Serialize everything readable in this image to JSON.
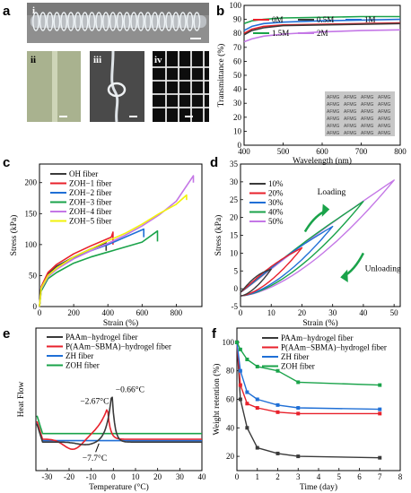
{
  "panel_labels": {
    "a": "a",
    "b": "b",
    "c": "c",
    "d": "d",
    "e": "e",
    "f": "f"
  },
  "photo_labels": {
    "i": "i",
    "ii": "ii",
    "iii": "iii",
    "iv": "iv"
  },
  "colors": {
    "black": "#3a3a3a",
    "red": "#e8212b",
    "blue": "#1f6fd6",
    "green": "#1aa34a",
    "purple": "#c477e6",
    "yellow": "#f2f20a"
  },
  "chart_data": [
    {
      "id": "b",
      "type": "line",
      "xlabel": "Wavelength (nm)",
      "ylabel": "Transmittance (%)",
      "xlim": [
        400,
        800
      ],
      "ylim": [
        0,
        100
      ],
      "xticks": [
        400,
        500,
        600,
        700,
        800
      ],
      "yticks": [
        0,
        10,
        20,
        30,
        40,
        50,
        60,
        70,
        80,
        90,
        100
      ],
      "legend_position": "top",
      "inset_text": "AFMG",
      "series": [
        {
          "name": "0M",
          "color": "#e8212b",
          "x": [
            400,
            420,
            450,
            500,
            600,
            700,
            800
          ],
          "y": [
            80,
            83,
            85,
            86,
            86.5,
            87,
            87.5
          ]
        },
        {
          "name": "0.5M",
          "color": "#3a3a3a",
          "x": [
            400,
            420,
            450,
            500,
            600,
            700,
            800
          ],
          "y": [
            79,
            82,
            84,
            85.5,
            86,
            86.5,
            87
          ]
        },
        {
          "name": "1M",
          "color": "#1f6fd6",
          "x": [
            400,
            420,
            450,
            500,
            600,
            700,
            800
          ],
          "y": [
            82,
            85,
            87,
            88,
            89,
            89.5,
            90
          ]
        },
        {
          "name": "1.5M",
          "color": "#1aa34a",
          "x": [
            400,
            420,
            450,
            500,
            600,
            700,
            800
          ],
          "y": [
            87,
            89,
            90,
            91,
            91.5,
            92,
            92
          ]
        },
        {
          "name": "2M",
          "color": "#c477e6",
          "x": [
            400,
            420,
            450,
            500,
            600,
            700,
            800
          ],
          "y": [
            74,
            76,
            78,
            79.5,
            81,
            82,
            82.5
          ]
        }
      ]
    },
    {
      "id": "c",
      "type": "line",
      "xlabel": "Strain (%)",
      "ylabel": "Stress (kPa)",
      "xlim": [
        0,
        950
      ],
      "ylim": [
        0,
        230
      ],
      "xticks": [
        0,
        200,
        400,
        600,
        800
      ],
      "yticks": [
        0,
        50,
        100,
        150,
        200
      ],
      "legend_position": "top-left",
      "series": [
        {
          "name": "OH fiber",
          "color": "#3a3a3a",
          "x": [
            0,
            10,
            50,
            100,
            200,
            300,
            390,
            390
          ],
          "y": [
            0,
            30,
            52,
            65,
            80,
            93,
            103,
            90
          ]
        },
        {
          "name": "ZOH−1 fiber",
          "color": "#e8212b",
          "x": [
            0,
            10,
            50,
            100,
            200,
            300,
            420,
            430,
            430
          ],
          "y": [
            0,
            32,
            55,
            68,
            85,
            98,
            112,
            120,
            100
          ]
        },
        {
          "name": "ZOH−2 fiber",
          "color": "#1f6fd6",
          "x": [
            0,
            10,
            50,
            100,
            200,
            300,
            400,
            500,
            610,
            610
          ],
          "y": [
            0,
            30,
            50,
            62,
            78,
            90,
            100,
            112,
            125,
            112
          ]
        },
        {
          "name": "ZOH−3 fiber",
          "color": "#1aa34a",
          "x": [
            0,
            10,
            50,
            100,
            200,
            300,
            400,
            500,
            600,
            690,
            690
          ],
          "y": [
            0,
            25,
            45,
            55,
            70,
            80,
            88,
            96,
            104,
            122,
            105
          ]
        },
        {
          "name": "ZOH−4 fiber",
          "color": "#c477e6",
          "x": [
            0,
            10,
            50,
            100,
            200,
            300,
            400,
            500,
            600,
            700,
            800,
            900,
            900
          ],
          "y": [
            0,
            28,
            48,
            60,
            77,
            90,
            102,
            115,
            130,
            148,
            170,
            211,
            200
          ]
        },
        {
          "name": "ZOH−5 fiber",
          "color": "#f2f20a",
          "x": [
            0,
            10,
            50,
            100,
            200,
            300,
            400,
            500,
            600,
            700,
            800,
            860,
            860
          ],
          "y": [
            0,
            30,
            50,
            62,
            80,
            93,
            106,
            118,
            133,
            150,
            165,
            180,
            172
          ]
        }
      ]
    },
    {
      "id": "d",
      "type": "line",
      "xlabel": "Strain (%)",
      "ylabel": "Stress (kPa)",
      "xlim": [
        0,
        52
      ],
      "ylim": [
        -5,
        35
      ],
      "xticks": [
        0,
        10,
        20,
        30,
        40,
        50
      ],
      "yticks": [
        -5,
        0,
        5,
        10,
        15,
        20,
        25,
        30,
        35
      ],
      "legend_position": "top-left",
      "annotations": [
        "Loading",
        "Unloading"
      ],
      "series": [
        {
          "name": "10%",
          "color": "#3a3a3a",
          "max_strain": 10,
          "max_stress": 5.5
        },
        {
          "name": "20%",
          "color": "#e8212b",
          "max_strain": 20,
          "max_stress": 11.5
        },
        {
          "name": "30%",
          "color": "#1f6fd6",
          "max_strain": 30,
          "max_stress": 17.5
        },
        {
          "name": "40%",
          "color": "#1aa34a",
          "max_strain": 40,
          "max_stress": 24.5
        },
        {
          "name": "50%",
          "color": "#c477e6",
          "max_strain": 50,
          "max_stress": 30.5
        }
      ]
    },
    {
      "id": "e",
      "type": "line",
      "xlabel": "Temperature (°C)",
      "ylabel": "Heat Flow",
      "xlim": [
        -35,
        40
      ],
      "xticks": [
        -30,
        -20,
        -10,
        0,
        10,
        20,
        30,
        40
      ],
      "legend_position": "top-left",
      "annotations": [
        "−2.67°C",
        "−0.66°C",
        "−7.7°C"
      ],
      "series": [
        {
          "name": "PAAm−hydrogel fiber",
          "color": "#3a3a3a",
          "peak_temperature": -0.66
        },
        {
          "name": "P(AAm−SBMA)−hydrogel fiber",
          "color": "#e8212b",
          "peak_temperature": -2.67
        },
        {
          "name": "ZH fiber",
          "color": "#1f6fd6"
        },
        {
          "name": "ZOH fiber",
          "color": "#1aa34a"
        }
      ]
    },
    {
      "id": "f",
      "type": "line",
      "xlabel": "Time (day)",
      "ylabel": "Weight retention (%)",
      "xlim": [
        0,
        8
      ],
      "ylim": [
        10,
        110
      ],
      "xticks": [
        0,
        1,
        2,
        3,
        4,
        5,
        6,
        7,
        8
      ],
      "yticks": [
        20,
        40,
        60,
        80,
        100
      ],
      "legend_position": "top-right",
      "series": [
        {
          "name": "PAAm−hydrogel fiber",
          "color": "#3a3a3a",
          "x": [
            0,
            0.17,
            0.5,
            1,
            2,
            3,
            7
          ],
          "y": [
            100,
            60,
            40,
            26,
            22,
            20,
            19
          ]
        },
        {
          "name": "P(AAm−SBMA)−hydrogel fiber",
          "color": "#e8212b",
          "x": [
            0,
            0.17,
            0.5,
            1,
            2,
            3,
            7
          ],
          "y": [
            100,
            70,
            57,
            54,
            51,
            50,
            50
          ]
        },
        {
          "name": "ZH fiber",
          "color": "#1f6fd6",
          "x": [
            0,
            0.17,
            0.5,
            1,
            2,
            3,
            7
          ],
          "y": [
            100,
            80,
            65,
            60,
            56,
            54,
            53
          ]
        },
        {
          "name": "ZOH fiber",
          "color": "#1aa34a",
          "x": [
            0,
            0.17,
            0.5,
            1,
            2,
            3,
            7
          ],
          "y": [
            100,
            95,
            88,
            83,
            80,
            72,
            70
          ]
        }
      ]
    }
  ]
}
